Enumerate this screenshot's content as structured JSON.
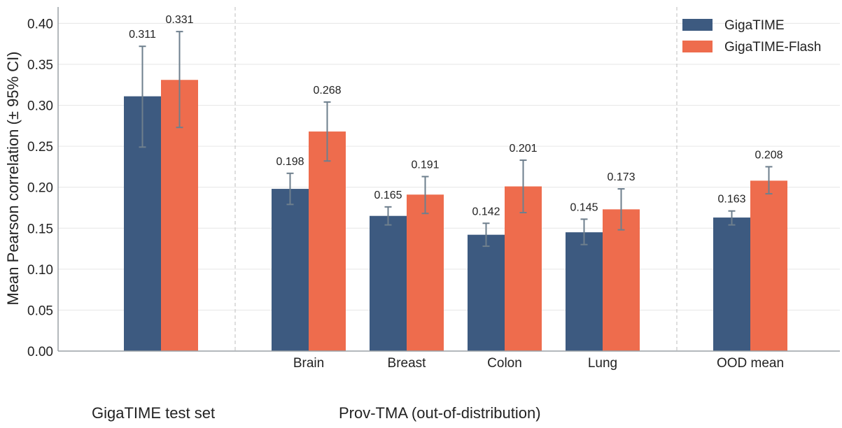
{
  "chart_data": {
    "type": "bar",
    "ylabel": "Mean Pearson correlation  (± 95% CI)",
    "ylim": [
      0,
      0.42
    ],
    "yticks": [
      "0.00",
      "0.05",
      "0.10",
      "0.15",
      "0.20",
      "0.25",
      "0.30",
      "0.35",
      "0.40"
    ],
    "grid": true,
    "legend_position": "top-right",
    "categories": [
      "",
      "Brain",
      "Breast",
      "Colon",
      "Lung",
      "OOD mean"
    ],
    "series": [
      {
        "name": "GigaTIME",
        "color": "#3d5a80",
        "values": [
          0.311,
          0.198,
          0.165,
          0.142,
          0.145,
          0.163
        ],
        "labels": [
          "0.311",
          "0.198",
          "0.165",
          "0.142",
          "0.145",
          "0.163"
        ],
        "ci_low": [
          0.249,
          0.179,
          0.154,
          0.128,
          0.13,
          0.154
        ],
        "ci_high": [
          0.372,
          0.217,
          0.176,
          0.156,
          0.161,
          0.171
        ]
      },
      {
        "name": "GigaTIME-Flash",
        "color": "#ee6c4d",
        "values": [
          0.331,
          0.268,
          0.191,
          0.201,
          0.173,
          0.208
        ],
        "labels": [
          "0.331",
          "0.268",
          "0.191",
          "0.201",
          "0.173",
          "0.208"
        ],
        "ci_low": [
          0.273,
          0.232,
          0.168,
          0.169,
          0.148,
          0.192
        ],
        "ci_high": [
          0.39,
          0.304,
          0.213,
          0.233,
          0.198,
          0.225
        ]
      }
    ],
    "group_labels": [
      "GigaTIME test set",
      "Prov-TMA (out-of-distribution)"
    ]
  }
}
